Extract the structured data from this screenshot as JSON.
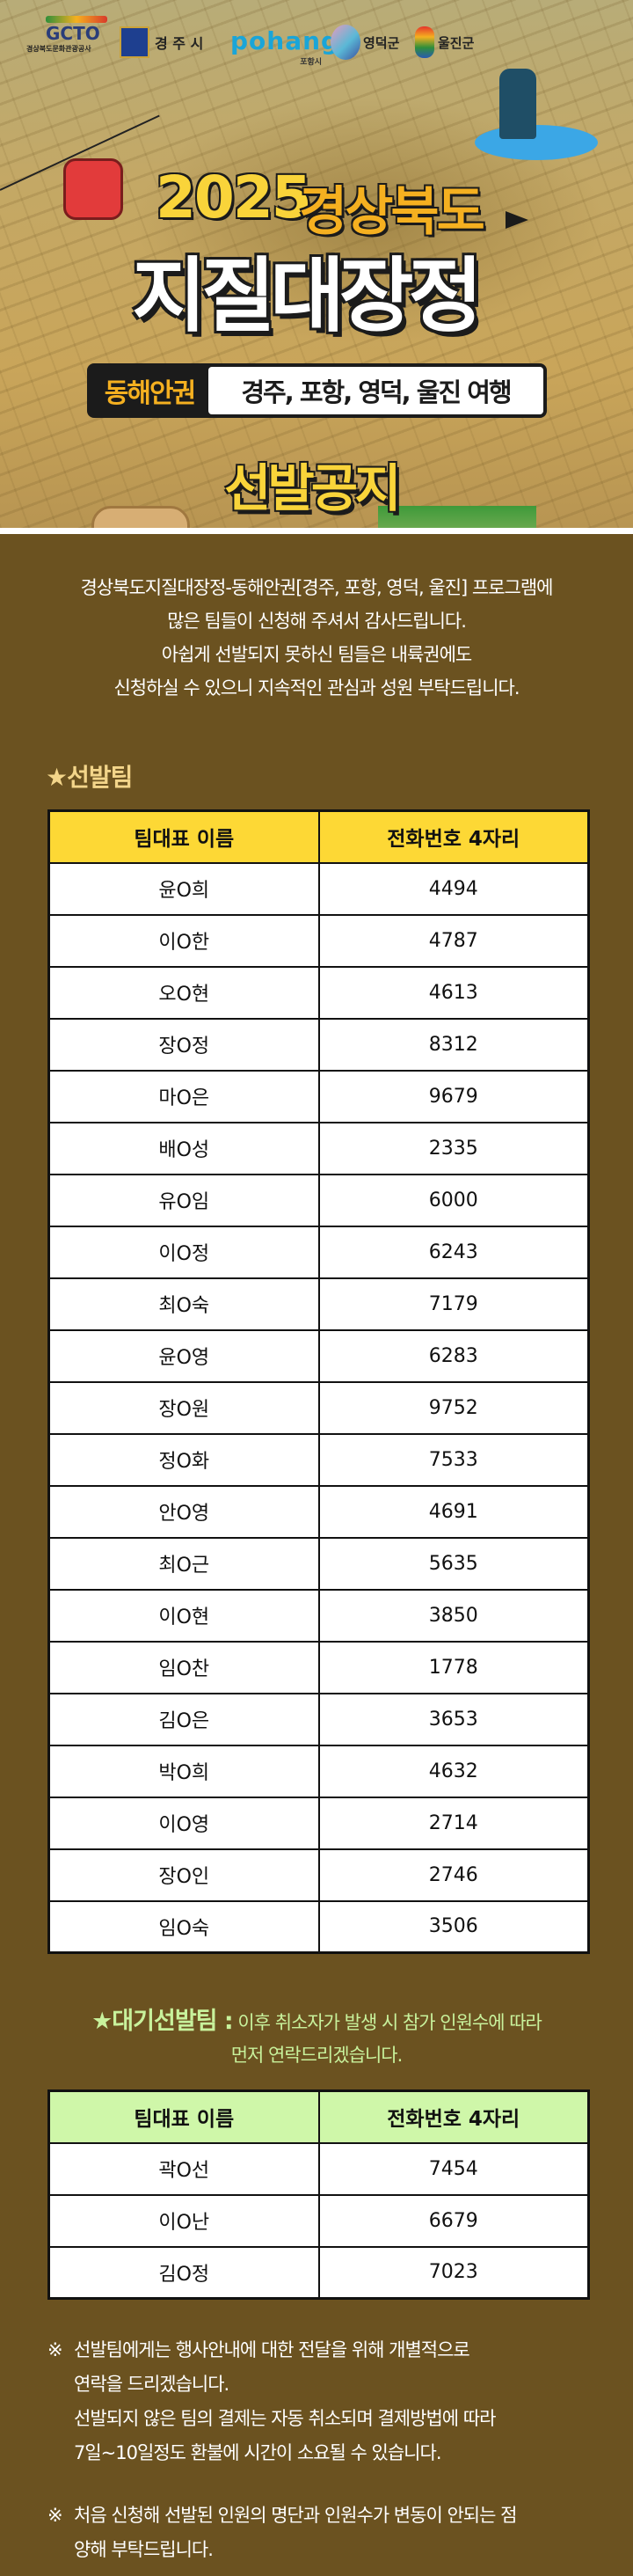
{
  "poster": {
    "logos": {
      "gcto": "GCTO",
      "gcto_sub": "경상북도문화관광공사",
      "gyeongju": "경 주 시",
      "pohang": "pohang",
      "pohang_sub": "포항시",
      "yeongdeok": "영덕군",
      "uljin": "울진군"
    },
    "title_year": "2025",
    "title_region": "경상북도",
    "title_main": "지질대장정",
    "banner_left": "동해안권",
    "banner_right": "경주, 포항, 영덕, 울진 여행",
    "notice": "선발공지"
  },
  "intro": [
    "경상북도지질대장정-동해안권[경주, 포항, 영덕, 울진] 프로그램에",
    "많은 팀들이 신청해 주셔서 감사드립니다.",
    "아쉽게 선발되지 못하신 팀들은 내륙권에도",
    "신청하실 수 있으니 지속적인 관심과 성원 부탁드립니다."
  ],
  "selected": {
    "title": "★선발팀",
    "columns": [
      "팀대표 이름",
      "전화번호 4자리"
    ],
    "rows": [
      [
        "윤O희",
        "4494"
      ],
      [
        "이O한",
        "4787"
      ],
      [
        "오O현",
        "4613"
      ],
      [
        "장O정",
        "8312"
      ],
      [
        "마O은",
        "9679"
      ],
      [
        "배O성",
        "2335"
      ],
      [
        "유O임",
        "6000"
      ],
      [
        "이O정",
        "6243"
      ],
      [
        "최O숙",
        "7179"
      ],
      [
        "윤O영",
        "6283"
      ],
      [
        "장O원",
        "9752"
      ],
      [
        "정O화",
        "7533"
      ],
      [
        "안O영",
        "4691"
      ],
      [
        "최O근",
        "5635"
      ],
      [
        "이O현",
        "3850"
      ],
      [
        "임O찬",
        "1778"
      ],
      [
        "김O은",
        "3653"
      ],
      [
        "박O희",
        "4632"
      ],
      [
        "이O영",
        "2714"
      ],
      [
        "장O인",
        "2746"
      ],
      [
        "임O숙",
        "3506"
      ]
    ]
  },
  "waitlist": {
    "title": "★대기선발팀 :",
    "desc_line1": "이후 취소자가 발생 시 참가 인원수에 따라",
    "desc_line2": "먼저 연락드리겠습니다.",
    "columns": [
      "팀대표 이름",
      "전화번호 4자리"
    ],
    "rows": [
      [
        "곽O선",
        "7454"
      ],
      [
        "이O난",
        "6679"
      ],
      [
        "김O정",
        "7023"
      ]
    ]
  },
  "notes": [
    {
      "mark": "※",
      "lines": [
        "선발팀에게는 행사안내에 대한 전달을 위해 개별적으로",
        "연락을 드리겠습니다.",
        "선발되지 않은 팀의 결제는 자동 취소되며 결제방법에 따라",
        "7일~10일정도 환불에 시간이 소요될 수 있습니다."
      ]
    },
    {
      "mark": "※",
      "lines": [
        "처음 신청해 선발된 인원의 명단과 인원수가 변동이 안되는 점",
        "양해 부탁드립니다."
      ]
    }
  ],
  "colors": {
    "background": "#6b5220",
    "selected_header": "#fdd835",
    "waitlist_header": "#cff7a9",
    "selected_title": "#f3d58a",
    "waitlist_text": "#c8f29c"
  }
}
